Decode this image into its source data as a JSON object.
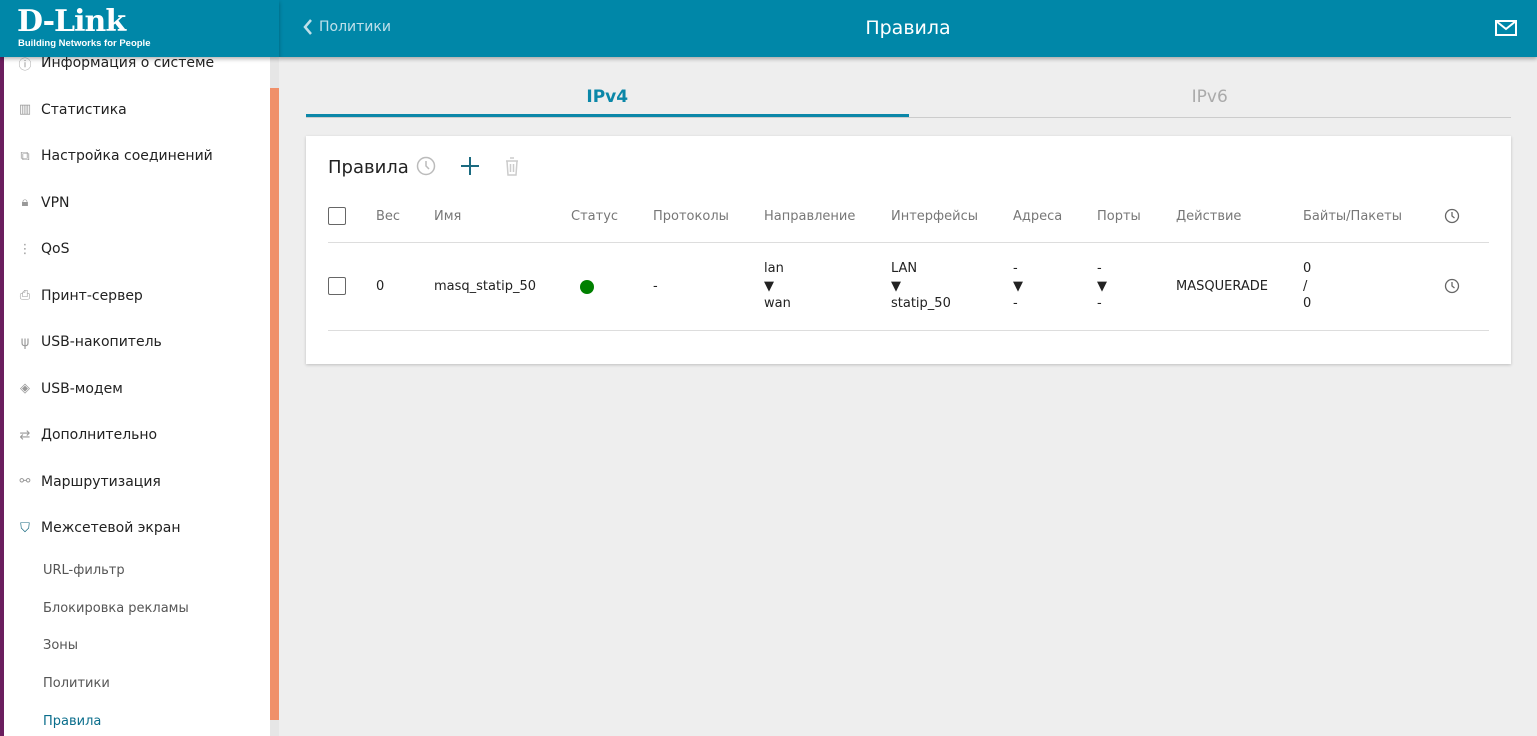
{
  "brand": {
    "logo": "D-Link",
    "tagline": "Building Networks for People"
  },
  "header": {
    "back_label": "Политики",
    "title": "Правила",
    "mail_icon": "mail-icon"
  },
  "sidebar": {
    "items": [
      {
        "label": "Информация о системе",
        "icon": "info-icon"
      },
      {
        "label": "Статистика",
        "icon": "bar-chart-icon"
      },
      {
        "label": "Настройка соединений",
        "icon": "connections-icon"
      },
      {
        "label": "VPN",
        "icon": "lock-icon"
      },
      {
        "label": "QoS",
        "icon": "qos-icon"
      },
      {
        "label": "Принт-сервер",
        "icon": "printer-icon"
      },
      {
        "label": "USB-накопитель",
        "icon": "usb-icon"
      },
      {
        "label": "USB-модем",
        "icon": "modem-icon"
      },
      {
        "label": "Дополнительно",
        "icon": "arrows-icon"
      },
      {
        "label": "Маршрутизация",
        "icon": "routing-icon"
      },
      {
        "label": "Межсетевой экран",
        "icon": "shield-icon"
      }
    ],
    "subitems": [
      {
        "label": "URL-фильтр"
      },
      {
        "label": "Блокировка рекламы"
      },
      {
        "label": "Зоны"
      },
      {
        "label": "Политики"
      },
      {
        "label": "Правила",
        "active": true
      }
    ]
  },
  "tabs": [
    {
      "label": "IPv4",
      "active": true
    },
    {
      "label": "IPv6"
    }
  ],
  "card": {
    "title": "Правила",
    "columns": [
      "Вес",
      "Имя",
      "Статус",
      "Протоколы",
      "Направление",
      "Интерфейсы",
      "Адреса",
      "Порты",
      "Действие",
      "Байты/Пакеты"
    ],
    "rows": [
      {
        "weight": "0",
        "name": "masq_statip_50",
        "status_color": "#008000",
        "protocols": "-",
        "dir_from": "lan",
        "dir_to": "wan",
        "if_from": "LAN",
        "if_to": "statip_50",
        "addr_from": "-",
        "addr_to": "-",
        "port_from": "-",
        "port_to": "-",
        "action": "MASQUERADE",
        "bytes": "0",
        "sep": "/",
        "packets": "0"
      }
    ],
    "arrow": "▼"
  },
  "colors": {
    "accent": "#0087a8",
    "scroll_thumb": "#f0906a"
  }
}
